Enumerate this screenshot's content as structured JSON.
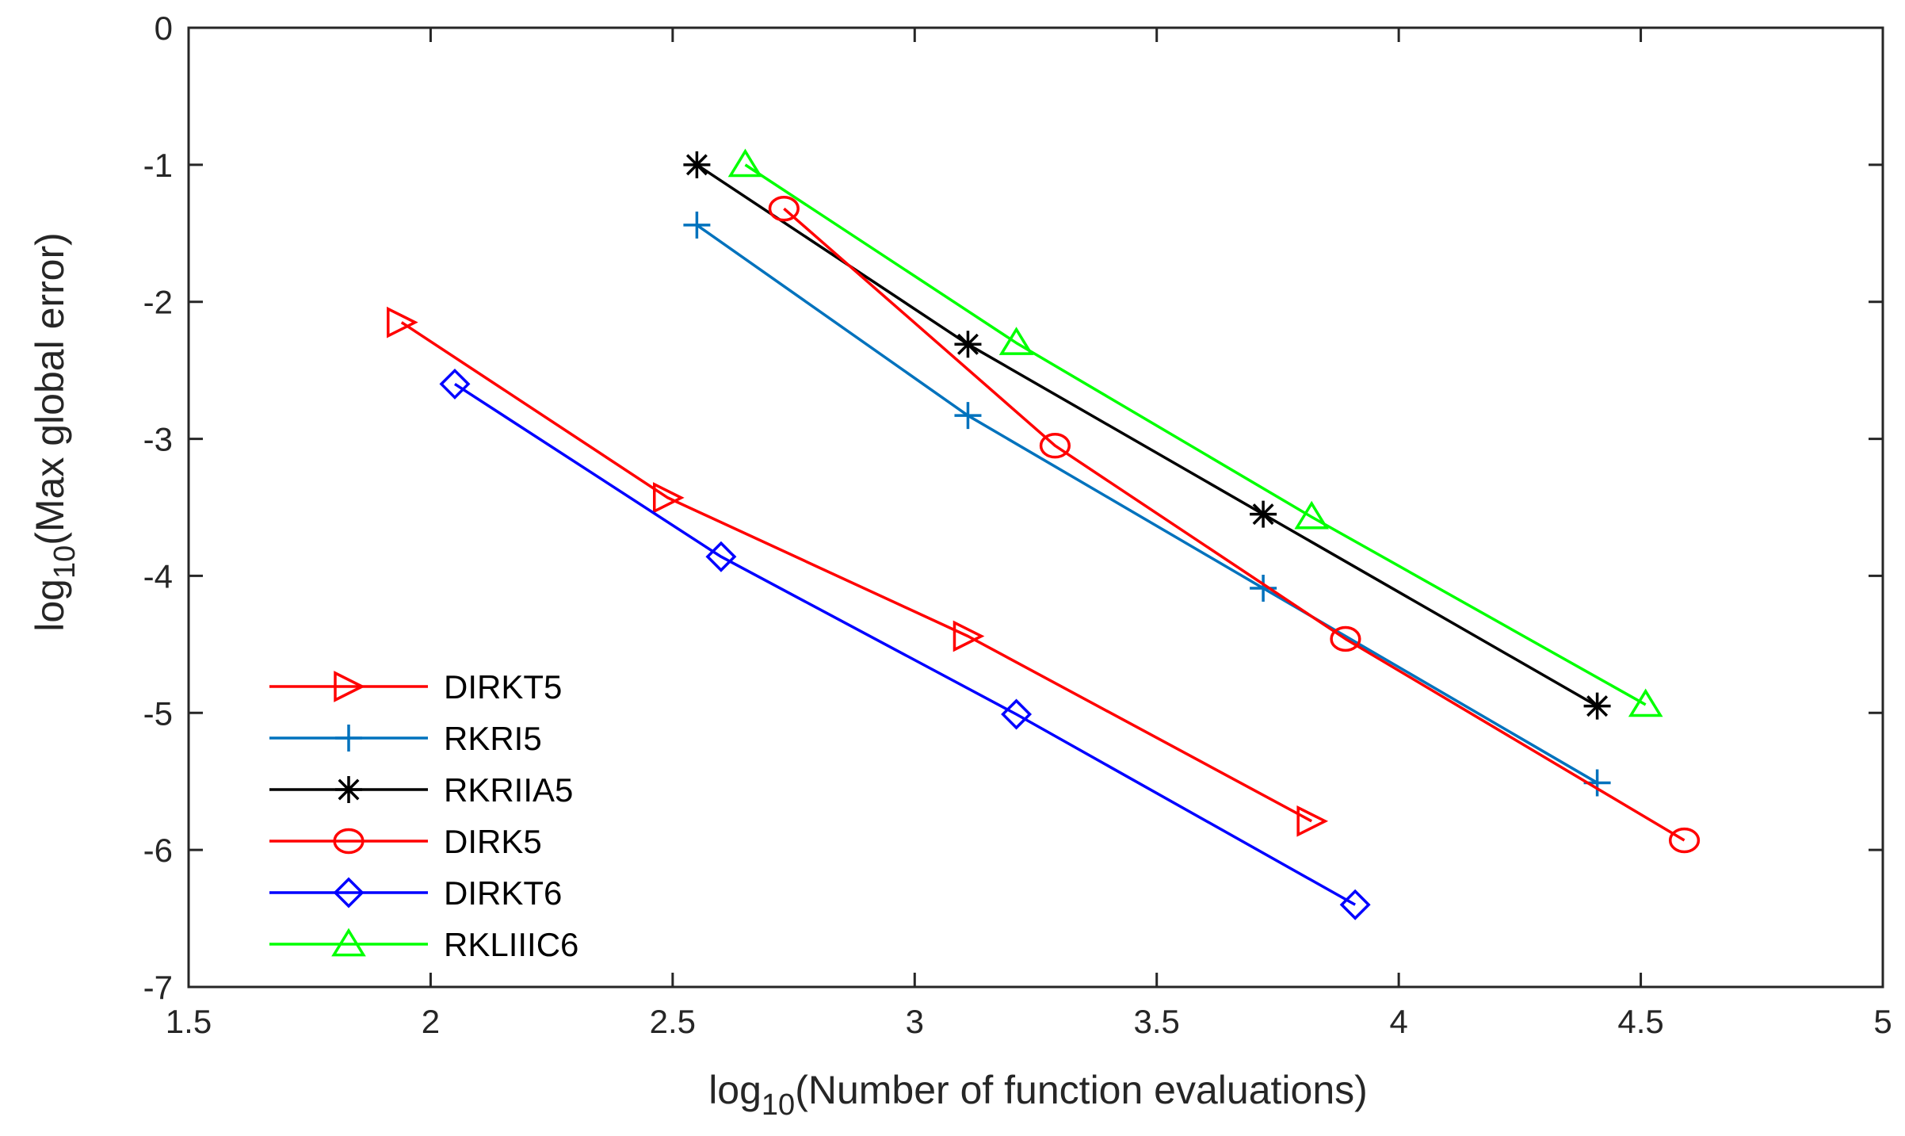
{
  "chart_data": {
    "type": "line",
    "title": "",
    "xlabel": {
      "prefix": "log",
      "sub": "10",
      "text": "(Number of function evaluations)"
    },
    "ylabel": {
      "prefix": "log",
      "sub": "10",
      "text": "(Max global error)"
    },
    "xlim": [
      1.5,
      5
    ],
    "ylim": [
      -7,
      0
    ],
    "xticks": [
      1.5,
      2,
      2.5,
      3,
      3.5,
      4,
      4.5,
      5
    ],
    "yticks": [
      0,
      -1,
      -2,
      -3,
      -4,
      -5,
      -6,
      -7
    ],
    "grid": false,
    "legend_position": "bottom-left",
    "series": [
      {
        "name": " DIRKT5",
        "color": "#ff0000",
        "marker": "triangle-right",
        "x": [
          1.94,
          2.49,
          3.11,
          3.82
        ],
        "y": [
          -2.15,
          -3.43,
          -4.44,
          -5.79
        ]
      },
      {
        "name": "RKRI5",
        "color": "#0072bd",
        "marker": "plus",
        "x": [
          2.55,
          3.11,
          3.72,
          4.41
        ],
        "y": [
          -1.44,
          -2.83,
          -4.09,
          -5.51
        ]
      },
      {
        "name": "RKRIIA5",
        "color": "#000000",
        "marker": "asterisk",
        "x": [
          2.55,
          3.11,
          3.72,
          4.41
        ],
        "y": [
          -1.0,
          -2.31,
          -3.55,
          -4.95
        ]
      },
      {
        "name": "DIRK5",
        "color": "#ff0000",
        "marker": "circle",
        "x": [
          2.73,
          3.29,
          3.89,
          4.59
        ],
        "y": [
          -1.32,
          -3.05,
          -4.46,
          -5.93
        ]
      },
      {
        "name": "DIRKT6",
        "color": "#0000ff",
        "marker": "diamond",
        "x": [
          2.05,
          2.6,
          3.21,
          3.91
        ],
        "y": [
          -2.6,
          -3.86,
          -5.01,
          -6.4
        ]
      },
      {
        "name": "RKLIIIC6",
        "color": "#00ff00",
        "marker": "triangle-up",
        "x": [
          2.65,
          3.21,
          3.82,
          4.51
        ],
        "y": [
          -1.0,
          -2.3,
          -3.57,
          -4.94
        ]
      }
    ]
  }
}
